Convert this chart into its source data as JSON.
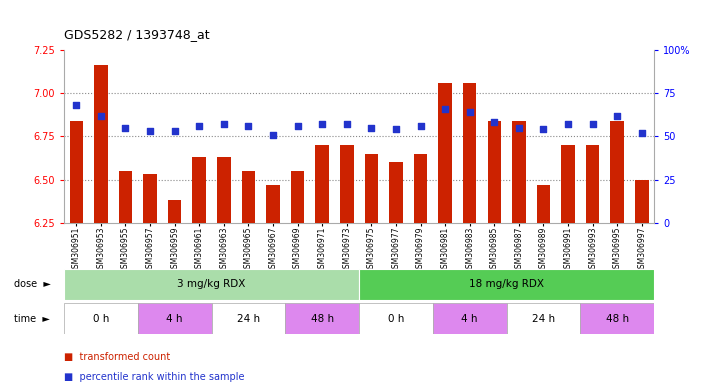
{
  "title": "GDS5282 / 1393748_at",
  "samples": [
    "GSM306951",
    "GSM306953",
    "GSM306955",
    "GSM306957",
    "GSM306959",
    "GSM306961",
    "GSM306963",
    "GSM306965",
    "GSM306967",
    "GSM306969",
    "GSM306971",
    "GSM306973",
    "GSM306975",
    "GSM306977",
    "GSM306979",
    "GSM306981",
    "GSM306983",
    "GSM306985",
    "GSM306987",
    "GSM306989",
    "GSM306991",
    "GSM306993",
    "GSM306995",
    "GSM306997"
  ],
  "bar_values": [
    6.84,
    7.16,
    6.55,
    6.53,
    6.38,
    6.63,
    6.63,
    6.55,
    6.47,
    6.55,
    6.7,
    6.7,
    6.65,
    6.6,
    6.65,
    7.06,
    7.06,
    6.84,
    6.84,
    6.47,
    6.7,
    6.7,
    6.84,
    6.5
  ],
  "percentile_values": [
    68,
    62,
    55,
    53,
    53,
    56,
    57,
    56,
    51,
    56,
    57,
    57,
    55,
    54,
    56,
    66,
    64,
    58,
    55,
    54,
    57,
    57,
    62,
    52
  ],
  "ylim": [
    6.25,
    7.25
  ],
  "yticks": [
    6.25,
    6.5,
    6.75,
    7.0,
    7.25
  ],
  "right_yticks": [
    0,
    25,
    50,
    75,
    100
  ],
  "right_ylabels": [
    "0",
    "25",
    "50",
    "75",
    "100%"
  ],
  "bar_color": "#cc2200",
  "dot_color": "#2233cc",
  "grid_color": "#888888",
  "dose_groups": [
    {
      "label": "3 mg/kg RDX",
      "start": 0,
      "end": 12,
      "color": "#aaddaa"
    },
    {
      "label": "18 mg/kg RDX",
      "start": 12,
      "end": 24,
      "color": "#55cc55"
    }
  ],
  "time_groups": [
    {
      "label": "0 h",
      "start": 0,
      "end": 3,
      "color": "#ffffff"
    },
    {
      "label": "4 h",
      "start": 3,
      "end": 6,
      "color": "#dd88ee"
    },
    {
      "label": "24 h",
      "start": 6,
      "end": 9,
      "color": "#ffffff"
    },
    {
      "label": "48 h",
      "start": 9,
      "end": 12,
      "color": "#dd88ee"
    },
    {
      "label": "0 h",
      "start": 12,
      "end": 15,
      "color": "#ffffff"
    },
    {
      "label": "4 h",
      "start": 15,
      "end": 18,
      "color": "#dd88ee"
    },
    {
      "label": "24 h",
      "start": 18,
      "end": 21,
      "color": "#ffffff"
    },
    {
      "label": "48 h",
      "start": 21,
      "end": 24,
      "color": "#dd88ee"
    }
  ],
  "legend_items": [
    {
      "label": "transformed count",
      "color": "#cc2200"
    },
    {
      "label": "percentile rank within the sample",
      "color": "#2233cc"
    }
  ]
}
